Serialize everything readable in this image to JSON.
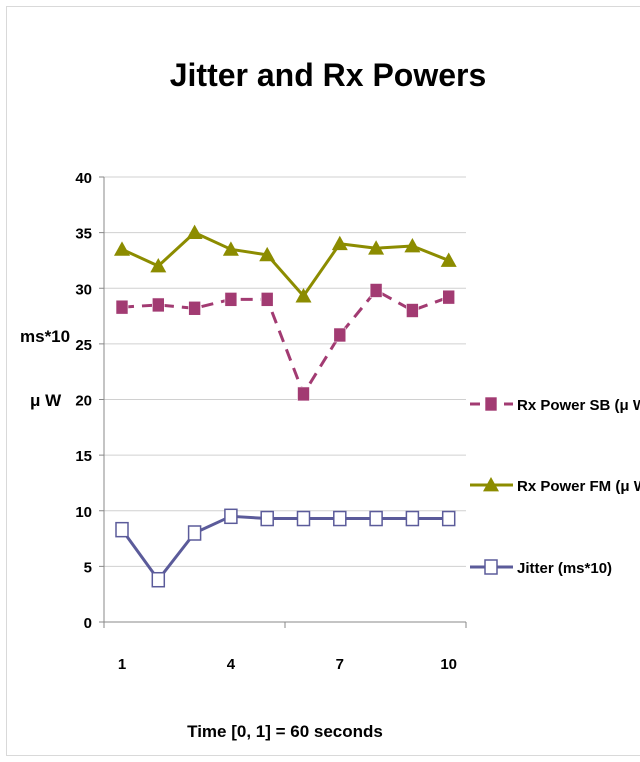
{
  "chart_data": {
    "type": "line",
    "title": "Jitter and Rx Powers",
    "xlabel": "Time [0, 1] = 60 seconds",
    "ylabel_lines": [
      "ms*10",
      "μ W"
    ],
    "x": [
      1,
      2,
      3,
      4,
      5,
      6,
      7,
      8,
      9,
      10
    ],
    "x_tick_labels": [
      "1",
      "4",
      "7",
      "10"
    ],
    "x_tick_values": [
      1,
      4,
      7,
      10
    ],
    "ylim": [
      0,
      40
    ],
    "y_ticks": [
      0,
      5,
      10,
      15,
      20,
      25,
      30,
      35,
      40
    ],
    "grid": "horizontal",
    "legend_position": "right",
    "series": [
      {
        "name": "Rx Power SB  (μ W)",
        "color": "#A23B72",
        "line_style": "dashed",
        "marker": "square-filled",
        "values": [
          28.3,
          28.5,
          28.2,
          29.0,
          29.0,
          20.5,
          25.8,
          29.8,
          28.0,
          29.2
        ]
      },
      {
        "name": "Rx Power FM (μ W)",
        "color": "#8C8C00",
        "line_style": "solid",
        "marker": "triangle",
        "values": [
          33.5,
          32.0,
          35.0,
          33.5,
          33.0,
          29.3,
          34.0,
          33.6,
          33.8,
          32.5
        ]
      },
      {
        "name": "Jitter (ms*10)",
        "color": "#5B5B9A",
        "line_style": "solid",
        "marker": "square-open",
        "values": [
          8.3,
          3.8,
          8.0,
          9.5,
          9.3,
          9.3,
          9.3,
          9.3,
          9.3,
          9.3
        ]
      }
    ]
  }
}
